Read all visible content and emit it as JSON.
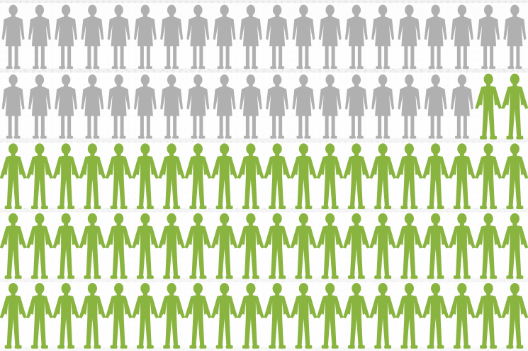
{
  "chart_data": {
    "type": "pictogram",
    "rows": 5,
    "columns": 20,
    "total": 100,
    "series": [
      {
        "icon": "woman-icon",
        "count": 38,
        "color": "#b0b0b0"
      },
      {
        "icon": "man-icon",
        "count": 62,
        "color": "#8ab440"
      }
    ]
  }
}
